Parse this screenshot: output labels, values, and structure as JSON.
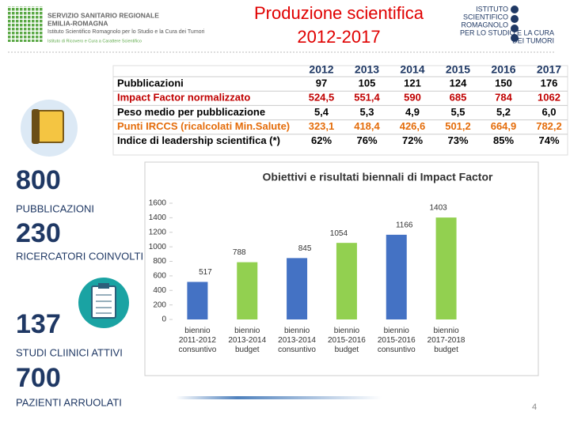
{
  "header": {
    "title_lines": [
      "Produzione scientifica",
      "2012-2017"
    ],
    "left_logo": [
      "SERVIZIO SANITARIO REGIONALE",
      "EMILIA-ROMAGNA",
      "Istituto Scientifico Romagnolo per lo Studio e la Cura dei Tumori",
      "Istituto di Ricovero e Cura a Carattere Scientifico"
    ],
    "right_logo": [
      "ISTITUTO",
      "SCIENTIFICO",
      "ROMAGNOLO",
      "PER LO STUDIO E LA CURA",
      "DEI TUMORI"
    ]
  },
  "table": {
    "columns": [
      "2012",
      "2013",
      "2014",
      "2015",
      "2016",
      "2017"
    ],
    "rows": [
      {
        "label": "Pubblicazioni",
        "color": "#000000",
        "cells": [
          "97",
          "105",
          "121",
          "124",
          "150",
          "176"
        ]
      },
      {
        "label": "Impact Factor normalizzato",
        "color": "#c00000",
        "cells": [
          "524,5",
          "551,4",
          "590",
          "685",
          "784",
          "1062"
        ]
      },
      {
        "label": "Peso medio per pubblicazione",
        "color": "#000000",
        "cells": [
          "5,4",
          "5,3",
          "4,9",
          "5,5",
          "5,2",
          "6,0"
        ]
      },
      {
        "label": "Punti IRCCS (ricalcolati Min.Salute)",
        "color": "#e46c0a",
        "cells": [
          "323,1",
          "418,4",
          "426,6",
          "501,2",
          "664,9",
          "782,2"
        ]
      },
      {
        "label": "Indice di leadership scientifica (*)",
        "color": "#000000",
        "cells": [
          "62%",
          "76%",
          "72%",
          "73%",
          "85%",
          "74%"
        ]
      }
    ]
  },
  "stats": [
    {
      "value": "800",
      "label": "PUBBLICAZIONI"
    },
    {
      "value": "230",
      "label": "RICERCATORI COINVOLTI"
    },
    {
      "value": "137",
      "label": "STUDI CLIINICI ATTIVI"
    },
    {
      "value": "700",
      "label": "PAZIENTI ARRUOLATI"
    }
  ],
  "chart": {
    "type": "bar",
    "title": "Obiettivi e risultati biennali di Impact Factor",
    "categories": [
      "biennio 2011-2012 consuntivo",
      "biennio 2013-2014 budget",
      "biennio 2013-2014 consuntivo",
      "biennio 2015-2016 budget",
      "biennio 2015-2016 consuntivo",
      "biennio 2017-2018 budget"
    ],
    "values": [
      517,
      788,
      845,
      1054,
      1166,
      1403
    ],
    "colors": [
      "#4472c4",
      "#92d050",
      "#4472c4",
      "#92d050",
      "#4472c4",
      "#92d050"
    ],
    "ylim": [
      0,
      1600
    ],
    "yticks": [
      0,
      200,
      400,
      600,
      800,
      1000,
      1200,
      1400,
      1600
    ]
  },
  "page_number": "4"
}
